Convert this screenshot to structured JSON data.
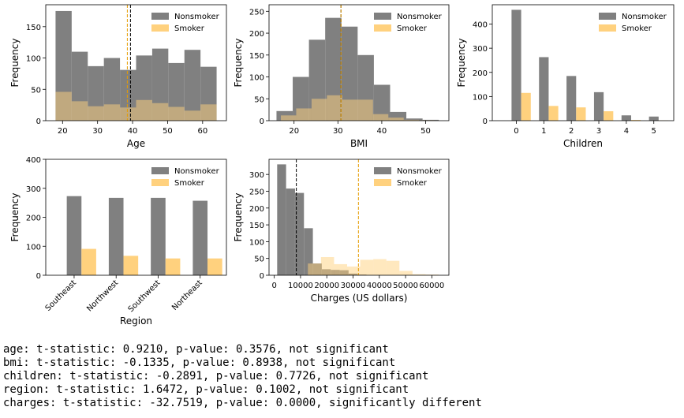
{
  "colors": {
    "nonsmoker": "#808080",
    "smoker": "#ffd17e",
    "overlap": "#c09a4c",
    "mean_nonsmoker": "#000000",
    "mean_smoker": "#e69c00"
  },
  "chart_data": [
    {
      "type": "bar",
      "subtype": "histogram",
      "xlabel": "Age",
      "ylabel": "Frequency",
      "xlim": [
        15.2,
        66.8
      ],
      "ylim": [
        0,
        185
      ],
      "xticks": [
        20,
        30,
        40,
        50,
        60
      ],
      "yticks": [
        0,
        50,
        100,
        150
      ],
      "bin_edges": [
        18,
        22.6,
        27.2,
        31.8,
        36.4,
        41,
        45.6,
        50.2,
        54.8,
        59.4,
        64
      ],
      "legend": {
        "position": "top-right"
      },
      "series": [
        {
          "name": "Nonsmoker",
          "values": [
            175,
            110,
            87,
            100,
            81,
            104,
            115,
            92,
            113,
            86
          ],
          "mean": 39.4
        },
        {
          "name": "Smoker",
          "values": [
            46,
            31,
            23,
            26,
            21,
            33,
            28,
            22,
            16,
            26
          ],
          "mean": 38.5
        }
      ]
    },
    {
      "type": "bar",
      "subtype": "histogram",
      "xlabel": "BMI",
      "ylabel": "Frequency",
      "xlim": [
        14.3,
        55.3
      ],
      "ylim": [
        0,
        265
      ],
      "xticks": [
        20,
        30,
        40,
        50
      ],
      "yticks": [
        0,
        50,
        100,
        150,
        200,
        250
      ],
      "legend": {
        "position": "top-right"
      },
      "series": [
        {
          "name": "Nonsmoker",
          "bin_edges": [
            16,
            19.7,
            23.4,
            27.1,
            30.8,
            34.5,
            38.2,
            41.9,
            45.6,
            49.3,
            53
          ],
          "values": [
            22,
            100,
            185,
            235,
            215,
            150,
            82,
            20,
            5,
            2
          ],
          "mean": 30.7
        },
        {
          "name": "Smoker",
          "bin_edges": [
            17,
            20.5,
            24,
            27.5,
            31,
            34.5,
            38,
            41.5,
            45,
            48.5,
            52
          ],
          "values": [
            12,
            28,
            50,
            58,
            48,
            48,
            15,
            7,
            2,
            1
          ],
          "mean": 30.7
        }
      ]
    },
    {
      "type": "bar",
      "xlabel": "Children",
      "ylabel": "Frequency",
      "xlim": [
        -0.7,
        5.9
      ],
      "ylim": [
        0,
        480
      ],
      "categories": [
        "0",
        "1",
        "2",
        "3",
        "4",
        "5"
      ],
      "yticks": [
        0,
        100,
        200,
        300,
        400
      ],
      "legend": {
        "position": "top-right"
      },
      "series": [
        {
          "name": "Nonsmoker",
          "values": [
            459,
            263,
            185,
            118,
            22,
            17
          ]
        },
        {
          "name": "Smoker",
          "values": [
            115,
            61,
            55,
            39,
            3,
            1
          ]
        }
      ]
    },
    {
      "type": "bar",
      "xlabel": "Region",
      "ylabel": "Frequency",
      "xlim": [
        -0.5,
        3.8
      ],
      "ylim": [
        0,
        400
      ],
      "categories": [
        "Southeast",
        "Northwest",
        "Southwest",
        "Northeast"
      ],
      "yticks": [
        0,
        100,
        200,
        300,
        400
      ],
      "legend": {
        "position": "top-right"
      },
      "series": [
        {
          "name": "Nonsmoker",
          "values": [
            273,
            267,
            267,
            257
          ]
        },
        {
          "name": "Smoker",
          "values": [
            91,
            67,
            58,
            58
          ]
        }
      ]
    },
    {
      "type": "bar",
      "subtype": "histogram",
      "xlabel": "Charges (US dollars)",
      "ylabel": "Frequency",
      "xlim": [
        -2000,
        66500
      ],
      "ylim": [
        0,
        345
      ],
      "xticks": [
        0,
        10000,
        20000,
        30000,
        40000,
        50000,
        60000
      ],
      "yticks": [
        0,
        50,
        100,
        150,
        200,
        250,
        300
      ],
      "legend": {
        "position": "top-right"
      },
      "series": [
        {
          "name": "Nonsmoker",
          "bin_edges": [
            1100,
            4500,
            7900,
            11300,
            14700,
            18100,
            21500,
            24900,
            28300,
            31700,
            35100
          ],
          "values": [
            330,
            258,
            245,
            140,
            35,
            18,
            16,
            15,
            5,
            2
          ],
          "mean": 8400
        },
        {
          "name": "Smoker",
          "bin_edges": [
            12800,
            17780,
            22760,
            27740,
            32720,
            37700,
            42680,
            47660,
            52640,
            57620,
            62600
          ],
          "values": [
            35,
            54,
            33,
            26,
            46,
            48,
            43,
            13,
            3,
            2
          ],
          "mean": 32050
        }
      ]
    }
  ],
  "output_lines": [
    "age: t-statistic: 0.9210, p-value: 0.3576, not significant",
    "bmi: t-statistic: -0.1335, p-value: 0.8938, not significant",
    "children: t-statistic: -0.2891, p-value: 0.7726, not significant",
    "region: t-statistic: 1.6472, p-value: 0.1002, not significant",
    "charges: t-statistic: -32.7519, p-value: 0.0000, significantly different"
  ]
}
